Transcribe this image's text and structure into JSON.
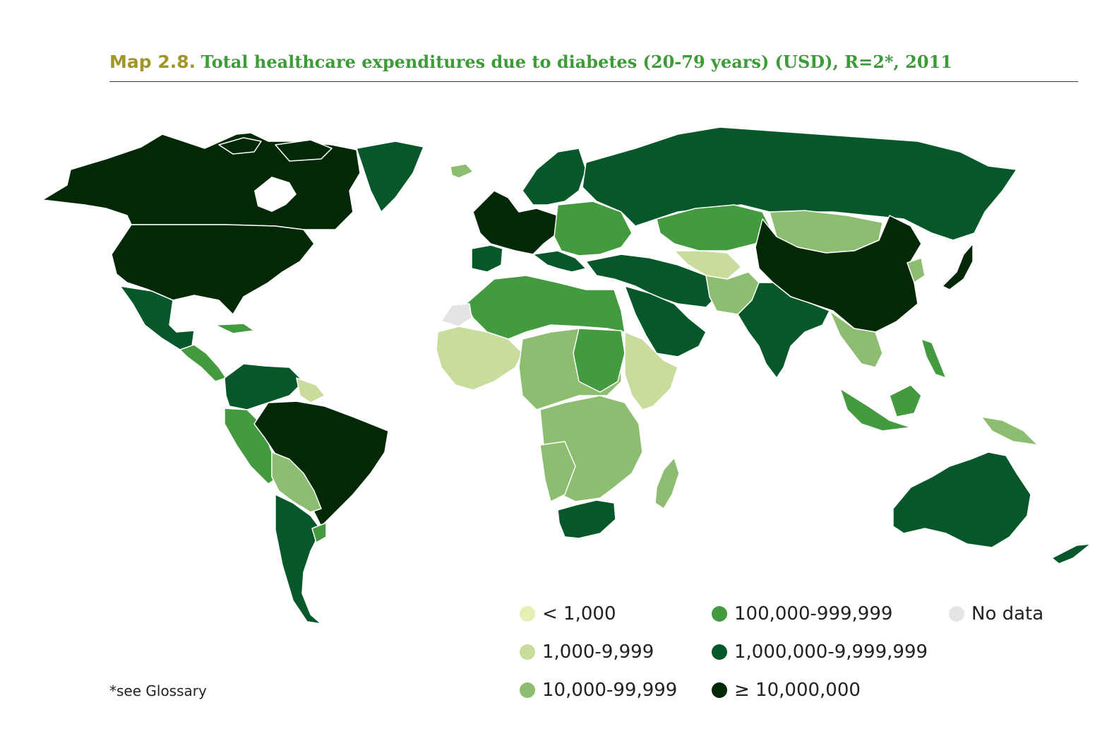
{
  "title": {
    "label": "Map 2.8.",
    "text": "Total healthcare expenditures due to diabetes (20-79 years) (USD), R=2*, 2011"
  },
  "legend": {
    "items": [
      {
        "label": "< 1,000",
        "color": "#e6efb4"
      },
      {
        "label": "1,000-9,999",
        "color": "#c8dc9c"
      },
      {
        "label": "10,000-99,999",
        "color": "#8dbd70"
      },
      {
        "label": "100,000-999,999",
        "color": "#439a3f"
      },
      {
        "label": "1,000,000-9,999,999",
        "color": "#06582a"
      },
      {
        "label": "≥ 10,000,000",
        "color": "#022806"
      },
      {
        "label": "No data",
        "color": "#e3e4e6"
      }
    ]
  },
  "footnote": "*see Glossary"
}
